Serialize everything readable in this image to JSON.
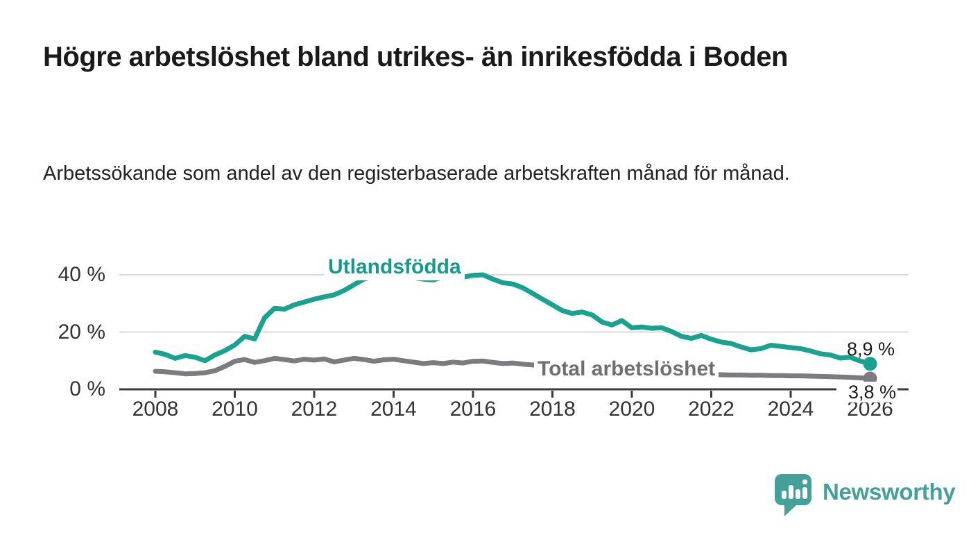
{
  "header": {
    "title": "Högre arbetslöshet bland utrikes- än inrikesfödda i Boden",
    "subtitle": "Arbetssökande som andel av den registerbaserade arbetskraften månad för månad."
  },
  "chart_data": {
    "type": "line",
    "title": "",
    "xlabel": "",
    "ylabel": "",
    "grid": "horizontal",
    "legend_position": "inline-labels-on-lines",
    "x_axis": {
      "tick_years": [
        2008,
        2010,
        2012,
        2014,
        2016,
        2018,
        2020,
        2022,
        2024,
        2026
      ],
      "min": 2008,
      "max": 2027
    },
    "y_axis": {
      "ticks": [
        {
          "value": 0,
          "label": "0 %"
        },
        {
          "value": 20,
          "label": "20 %"
        },
        {
          "value": 40,
          "label": "40 %"
        }
      ],
      "min": 0,
      "max": 45,
      "unit": "%"
    },
    "series": [
      {
        "name": "Utlandsfödda",
        "color": "#18a28f",
        "end_label": "8,9 %",
        "end_value": 8.9,
        "x_start": 2008.0,
        "x_step": 0.25,
        "values": [
          13.0,
          12.2,
          10.8,
          11.8,
          11.2,
          10.0,
          12.0,
          13.5,
          15.5,
          18.5,
          17.6,
          25.0,
          28.3,
          28.0,
          29.5,
          30.5,
          31.5,
          32.3,
          33.0,
          34.5,
          36.5,
          38.5,
          39.5,
          39.0,
          39.8,
          40.0,
          39.0,
          38.5,
          38.2,
          39.3,
          39.8,
          39.2,
          39.8,
          40.0,
          38.5,
          37.2,
          36.8,
          35.5,
          33.5,
          31.5,
          29.5,
          27.5,
          26.5,
          27.0,
          26.0,
          23.5,
          22.5,
          24.0,
          21.5,
          21.8,
          21.3,
          21.5,
          20.2,
          18.5,
          17.8,
          18.8,
          17.5,
          16.5,
          16.0,
          14.8,
          13.8,
          14.2,
          15.4,
          15.0,
          14.6,
          14.2,
          13.4,
          12.4,
          12.0,
          10.9,
          11.2,
          9.9,
          8.9
        ]
      },
      {
        "name": "Total arbetslöshet",
        "color": "#7c7c80",
        "end_label": "3,8 %",
        "end_value": 3.8,
        "x_start": 2008.0,
        "x_step": 0.25,
        "values": [
          6.3,
          6.1,
          5.8,
          5.4,
          5.5,
          5.8,
          6.5,
          8.0,
          9.8,
          10.4,
          9.4,
          10.0,
          10.8,
          10.4,
          9.9,
          10.5,
          10.2,
          10.6,
          9.6,
          10.2,
          10.8,
          10.4,
          9.8,
          10.3,
          10.5,
          10.0,
          9.5,
          9.0,
          9.3,
          9.0,
          9.5,
          9.2,
          9.8,
          9.9,
          9.4,
          9.0,
          9.2,
          8.8,
          8.5,
          8.0,
          7.8,
          7.6,
          7.4,
          7.2,
          7.0,
          6.9,
          6.8,
          6.7,
          6.6,
          6.5,
          6.4,
          6.2,
          6.0,
          5.8,
          5.6,
          5.4,
          5.2,
          5.1,
          5.0,
          5.0,
          4.9,
          4.9,
          4.8,
          4.8,
          4.7,
          4.7,
          4.6,
          4.5,
          4.4,
          4.3,
          4.2,
          4.0,
          3.8
        ]
      }
    ]
  },
  "colors": {
    "accent_teal": "#18a28f",
    "series_gray": "#7c7c80",
    "axis": "#3b3b3b",
    "grid": "#d9d9d9",
    "tick_text": "#333333",
    "title_text": "#1a1a1a",
    "brand_teal": "#45a099",
    "background": "#ffffff"
  },
  "footer": {
    "brand": "Newsworthy",
    "logo_icon": "speech-bubble-bar-chart"
  }
}
